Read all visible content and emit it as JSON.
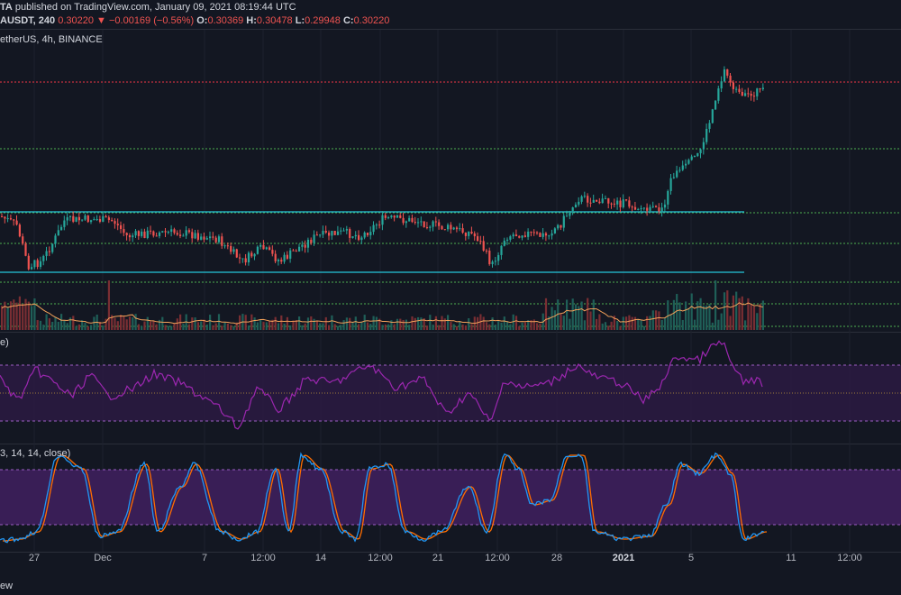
{
  "header": {
    "publisher_tail": "TA",
    "published_text": "published on TradingView.com, January 09, 2021 08:19:44 UTC",
    "symbol": "AUSDT, 240",
    "last_price": "0.30220",
    "change_arrow": "▼",
    "change": "−0.00169 (−0.56%)",
    "o_label": "O:",
    "o_value": "0.30369",
    "h_label": "H:",
    "h_value": "0.30478",
    "l_label": "L:",
    "l_value": "0.29948",
    "c_label": "C:",
    "c_value": "0.30220"
  },
  "main_pane": {
    "label": "etherUS, 4h, BINANCE"
  },
  "rsi_pane": {
    "label": "e)"
  },
  "stoch_pane": {
    "label": "3, 14, 14, close)"
  },
  "x_axis": {
    "labels": [
      "27",
      "Dec",
      "7",
      "12:00",
      "14",
      "12:00",
      "21",
      "12:00",
      "28",
      "2021",
      "5",
      "11",
      "12:00"
    ],
    "bold_label": "2021"
  },
  "footer": {
    "text": "ew"
  },
  "colors": {
    "background": "#131722",
    "up_candle": "#26a69a",
    "down_candle": "#ef5350",
    "resistance_line": "#f23645",
    "support_dotted": "#4caf50",
    "trend_line": "#26c6da",
    "rsi_line": "#9c27b0",
    "stoch_k": "#2196f3",
    "stoch_d": "#ff6d00",
    "band_fill": "#3b1f5a",
    "volume_ma": "#f5a25a"
  }
}
